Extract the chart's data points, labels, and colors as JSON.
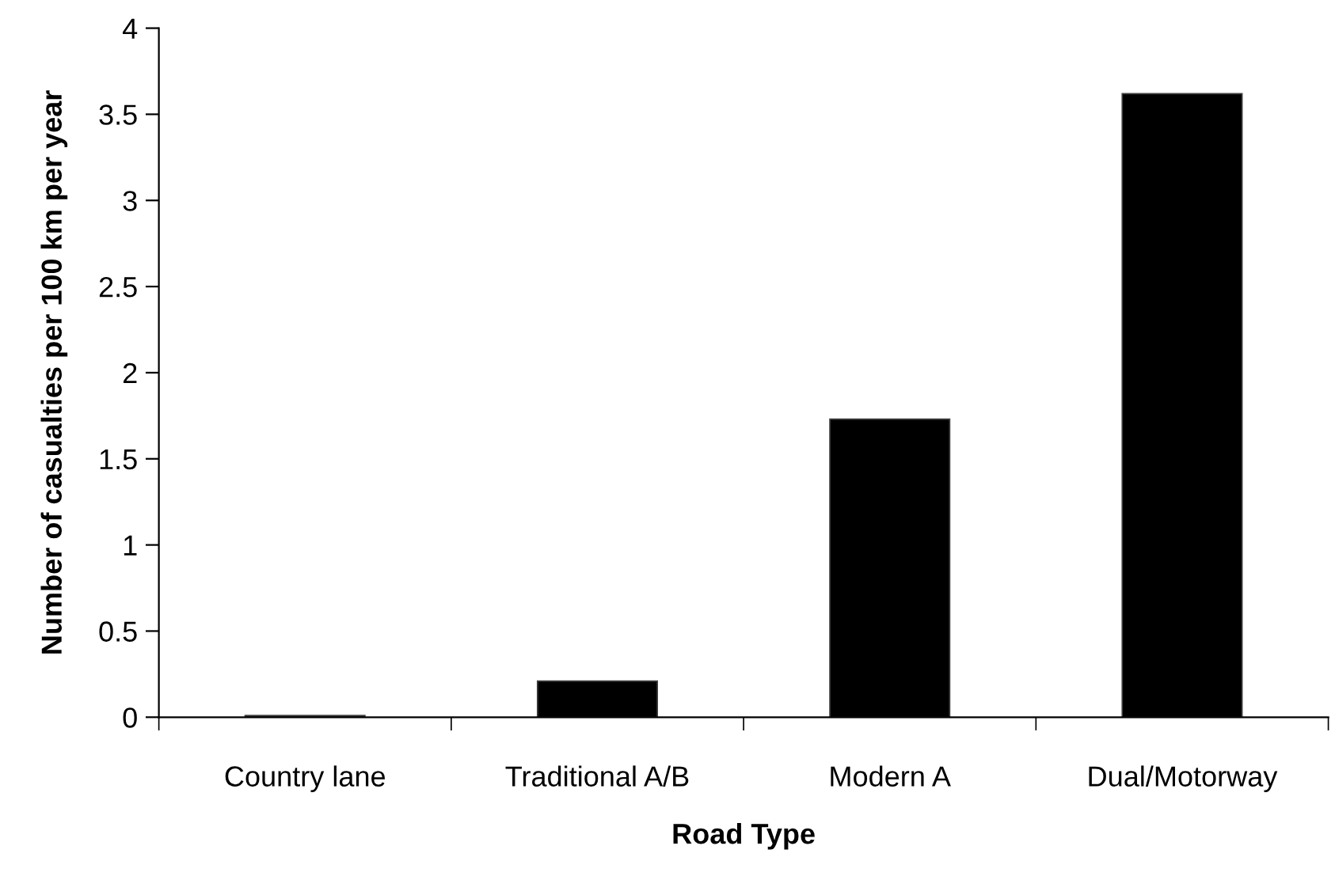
{
  "chart_data": {
    "type": "bar",
    "xlabel": "Road Type",
    "ylabel": "Number of casualties per 100 km per year",
    "categories": [
      "Country lane",
      "Traditional A/B",
      "Modern A",
      "Dual/Motorway"
    ],
    "values": [
      0.01,
      0.21,
      1.73,
      3.62
    ],
    "color": "#000000",
    "ylim": [
      0,
      4
    ],
    "yticks": [
      0,
      0.5,
      1,
      1.5,
      2,
      2.5,
      3,
      3.5,
      4
    ],
    "grid": false,
    "legend": false
  }
}
